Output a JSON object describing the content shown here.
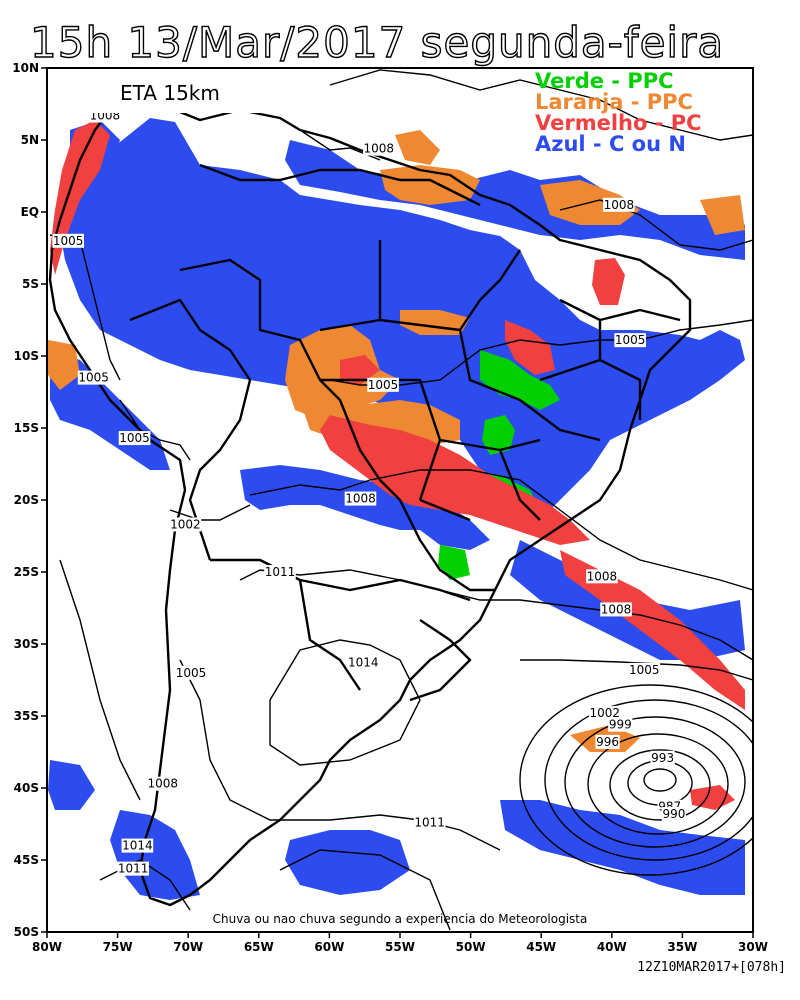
{
  "title": "15h 13/Mar/2017 segunda-feira",
  "model_label": "ETA 15km",
  "legend": [
    {
      "label": "Verde - PPC",
      "color": "#00d000"
    },
    {
      "label": "Laranja - PPC",
      "color": "#ee8833"
    },
    {
      "label": "Vermelho - PC",
      "color": "#f04040"
    },
    {
      "label": "Azul - C ou N",
      "color": "#2c4cf0"
    }
  ],
  "note": "Chuva ou nao chuva segundo a experiencia do Meteorologista",
  "footer": "12Z10MAR2017+[078h]",
  "axes": {
    "lat_ticks": [
      "10N",
      "5N",
      "EQ",
      "5S",
      "10S",
      "15S",
      "20S",
      "25S",
      "30S",
      "35S",
      "40S",
      "45S",
      "50S"
    ],
    "lon_ticks": [
      "80W",
      "75W",
      "70W",
      "65W",
      "60W",
      "55W",
      "50W",
      "45W",
      "40W",
      "35W",
      "30W"
    ]
  },
  "isobar_labels": [
    {
      "text": "1008",
      "lon": -56.5,
      "lat": 4.4
    },
    {
      "text": "1008",
      "lon": -39.5,
      "lat": 0.5
    },
    {
      "text": "1005",
      "lon": -78.5,
      "lat": -2.0
    },
    {
      "text": "1005",
      "lon": -38.7,
      "lat": -8.9
    },
    {
      "text": "1005",
      "lon": -76.7,
      "lat": -11.5
    },
    {
      "text": "1005",
      "lon": -56.2,
      "lat": -12.0
    },
    {
      "text": "1005",
      "lon": -73.8,
      "lat": -15.7
    },
    {
      "text": "1008",
      "lon": -57.8,
      "lat": -19.9
    },
    {
      "text": "1002",
      "lon": -70.2,
      "lat": -21.7
    },
    {
      "text": "1011",
      "lon": -63.5,
      "lat": -25.0
    },
    {
      "text": "1008",
      "lon": -40.7,
      "lat": -25.3
    },
    {
      "text": "1008",
      "lon": -39.7,
      "lat": -27.6
    },
    {
      "text": "1014",
      "lon": -57.6,
      "lat": -31.3
    },
    {
      "text": "1005",
      "lon": -37.7,
      "lat": -31.8
    },
    {
      "text": "1005",
      "lon": -69.8,
      "lat": -32.0
    },
    {
      "text": "1002",
      "lon": -40.5,
      "lat": -34.8
    },
    {
      "text": "999",
      "lon": -39.4,
      "lat": -35.6
    },
    {
      "text": "996",
      "lon": -40.3,
      "lat": -36.8
    },
    {
      "text": "993",
      "lon": -36.4,
      "lat": -37.9
    },
    {
      "text": "1008",
      "lon": -71.8,
      "lat": -39.7
    },
    {
      "text": "987",
      "lon": -35.9,
      "lat": -41.3
    },
    {
      "text": "990",
      "lon": -35.6,
      "lat": -41.8
    },
    {
      "text": "1011",
      "lon": -52.9,
      "lat": -42.4
    },
    {
      "text": "1014",
      "lon": -73.6,
      "lat": -44.0
    },
    {
      "text": "1011",
      "lon": -73.9,
      "lat": -45.6
    },
    {
      "text": "1008",
      "lon": -75.9,
      "lat": 6.7
    }
  ]
}
